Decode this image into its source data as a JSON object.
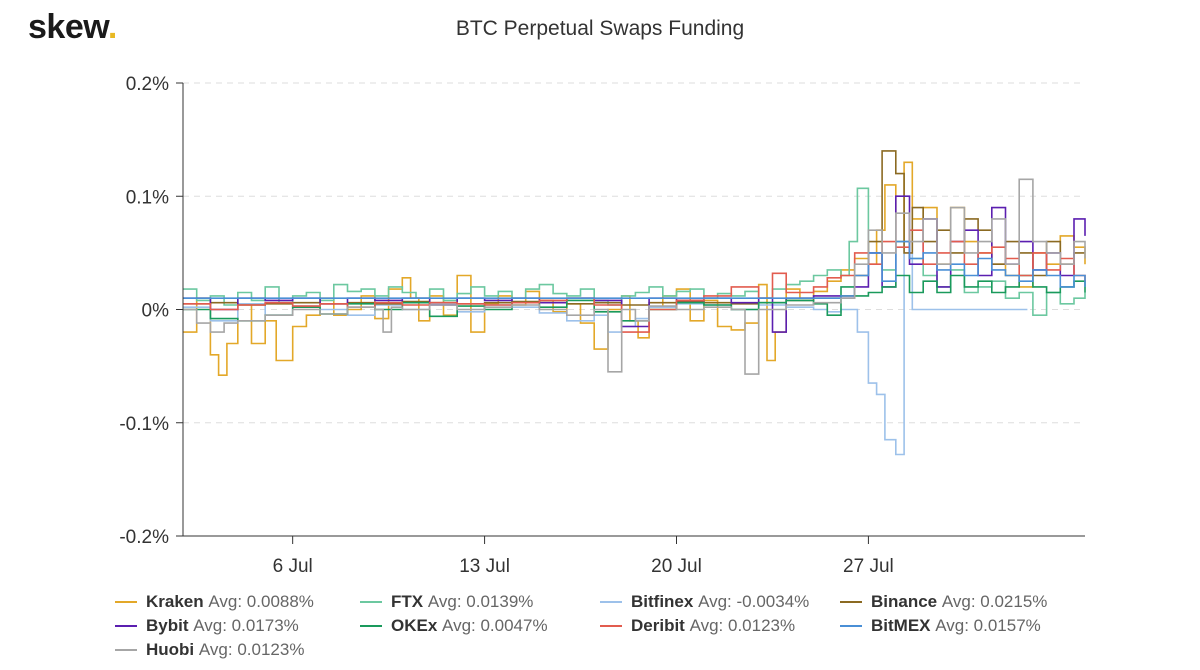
{
  "brand": {
    "name": "skew",
    "dot": "."
  },
  "chart_data": {
    "type": "line",
    "title": "BTC Perpetual Swaps Funding",
    "xlabel": "",
    "ylabel": "",
    "x_unit": "day of month (June 30 = 0)",
    "xlim": [
      2,
      34.9
    ],
    "ylim": [
      -0.2,
      0.2
    ],
    "y_ticks": [
      {
        "value": 0.2,
        "label": "0.2%"
      },
      {
        "value": 0.1,
        "label": "0.1%"
      },
      {
        "value": 0.0,
        "label": "0%"
      },
      {
        "value": -0.1,
        "label": "-0.1%"
      },
      {
        "value": -0.2,
        "label": "-0.2%"
      }
    ],
    "x_ticks": [
      {
        "value": 6,
        "label": "6 Jul"
      },
      {
        "value": 13,
        "label": "13 Jul"
      },
      {
        "value": 20,
        "label": "20 Jul"
      },
      {
        "value": 27,
        "label": "27 Jul"
      }
    ],
    "grid": true,
    "series": [
      {
        "name": "Kraken",
        "avg_label": "Avg: 0.0088%",
        "color": "#e3a829",
        "x": [
          2,
          2.5,
          3,
          3.3,
          3.6,
          4,
          4.5,
          5,
          5.4,
          6,
          6.5,
          7,
          7.5,
          8,
          8.5,
          9,
          9.5,
          10,
          10.3,
          10.6,
          11,
          11.5,
          12,
          12.5,
          13,
          13.5,
          14,
          14.5,
          15,
          15.5,
          16,
          16.5,
          17,
          17.5,
          18,
          18.3,
          18.6,
          19,
          19.5,
          20,
          20.5,
          21,
          21.5,
          22,
          22.5,
          23,
          23.3,
          23.6,
          24,
          24.5,
          25,
          25.5,
          26,
          26.5,
          27,
          27.3,
          27.6,
          28,
          28.3,
          28.6,
          29,
          29.5,
          30,
          30.5,
          31,
          31.5,
          32,
          32.5,
          33,
          33.5,
          34,
          34.5,
          34.9
        ],
        "y": [
          -0.02,
          0.01,
          -0.04,
          -0.058,
          -0.03,
          0.005,
          -0.03,
          -0.01,
          -0.045,
          -0.015,
          -0.005,
          0.01,
          -0.005,
          0.0,
          0.012,
          -0.008,
          0.018,
          0.028,
          0.01,
          -0.01,
          0.012,
          -0.005,
          0.03,
          -0.02,
          0.005,
          0.012,
          0.004,
          0.016,
          0.008,
          -0.002,
          0.005,
          -0.012,
          -0.035,
          0.0,
          0.012,
          -0.01,
          -0.025,
          0.002,
          0.012,
          0.018,
          -0.01,
          0.008,
          -0.015,
          -0.018,
          -0.012,
          0.022,
          -0.045,
          -0.02,
          0.018,
          0.01,
          0.016,
          0.025,
          0.035,
          0.045,
          0.04,
          0.07,
          0.11,
          0.06,
          0.13,
          0.08,
          0.09,
          0.04,
          0.09,
          0.06,
          0.05,
          0.04,
          0.03,
          0.02,
          0.05,
          0.04,
          0.065,
          0.055,
          0.04
        ]
      },
      {
        "name": "FTX",
        "avg_label": "Avg: 0.0139%",
        "color": "#6cc8a0",
        "x": [
          2,
          2.5,
          3,
          3.5,
          4,
          4.5,
          5,
          5.5,
          6,
          6.5,
          7,
          7.5,
          8,
          8.5,
          9,
          9.5,
          10,
          10.5,
          11,
          11.5,
          12,
          12.5,
          13,
          13.5,
          14,
          14.5,
          15,
          15.5,
          16,
          16.5,
          17,
          17.5,
          18,
          18.5,
          19,
          19.5,
          20,
          20.5,
          21,
          21.5,
          22,
          22.5,
          23,
          23.5,
          24,
          24.5,
          25,
          25.5,
          26,
          26.3,
          26.6,
          27,
          27.5,
          28,
          28.5,
          29,
          29.5,
          30,
          30.5,
          31,
          31.5,
          32,
          32.5,
          33,
          33.5,
          34,
          34.5,
          34.9
        ],
        "y": [
          0.018,
          0.008,
          0.012,
          0.004,
          0.015,
          0.008,
          0.02,
          0.006,
          0.012,
          0.015,
          0.008,
          0.022,
          0.016,
          0.018,
          0.012,
          0.02,
          0.015,
          0.01,
          0.018,
          0.008,
          0.014,
          0.02,
          0.012,
          0.016,
          0.01,
          0.018,
          0.022,
          0.014,
          0.012,
          0.018,
          0.008,
          0.004,
          0.012,
          0.015,
          0.02,
          0.012,
          0.016,
          0.018,
          0.01,
          0.014,
          0.012,
          0.016,
          0.01,
          0.018,
          0.022,
          0.025,
          0.03,
          0.035,
          0.03,
          0.06,
          0.107,
          0.05,
          0.035,
          0.06,
          0.045,
          0.03,
          0.02,
          0.035,
          0.015,
          0.02,
          0.025,
          0.01,
          0.015,
          -0.005,
          0.015,
          0.005,
          0.01,
          0.015
        ]
      },
      {
        "name": "Bitfinex",
        "avg_label": "Avg: -0.0034%",
        "color": "#9dc1ea",
        "x": [
          2,
          3,
          4,
          5,
          6,
          7,
          8,
          9,
          10,
          11,
          12,
          13,
          14,
          15,
          16,
          17,
          17.5,
          18,
          18.5,
          19,
          20,
          21,
          22,
          23,
          24,
          25,
          25.5,
          26,
          26.3,
          26.6,
          27,
          27.3,
          27.6,
          28,
          28.3,
          28.6,
          29,
          29.5,
          30,
          30.5,
          31,
          31.5,
          32,
          32.5,
          32.8
        ],
        "y": [
          0.002,
          -0.01,
          0.005,
          -0.005,
          0.003,
          0.0,
          -0.005,
          0.004,
          0.0,
          0.005,
          -0.002,
          0.004,
          0.002,
          -0.003,
          -0.01,
          -0.005,
          -0.02,
          -0.015,
          -0.008,
          0.002,
          0.005,
          0.004,
          0.0,
          0.004,
          0.002,
          0.0,
          -0.002,
          0.0,
          0.0,
          -0.02,
          -0.065,
          -0.075,
          -0.115,
          -0.128,
          0.06,
          0.0,
          0.0,
          0.0,
          0.0,
          0.0,
          0.0,
          0.0,
          0.0,
          0.0,
          0.0
        ]
      },
      {
        "name": "Binance",
        "avg_label": "Avg: 0.0215%",
        "color": "#8b6a22",
        "x": [
          2,
          3,
          4,
          5,
          6,
          7,
          8,
          9,
          10,
          11,
          12,
          13,
          14,
          15,
          16,
          17,
          18,
          19,
          20,
          21,
          22,
          23,
          24,
          25,
          26,
          26.5,
          27,
          27.5,
          28,
          28.3,
          28.6,
          29,
          29.5,
          30,
          30.5,
          31,
          31.5,
          32,
          32.5,
          33,
          33.5,
          34,
          34.5,
          34.9
        ],
        "y": [
          0.005,
          0.006,
          0.004,
          0.005,
          0.006,
          0.005,
          0.006,
          0.005,
          0.007,
          0.006,
          0.005,
          0.006,
          0.007,
          0.006,
          0.005,
          0.006,
          0.004,
          0.006,
          0.007,
          0.006,
          0.005,
          0.006,
          0.008,
          0.01,
          0.012,
          0.03,
          0.06,
          0.14,
          0.12,
          0.05,
          0.09,
          0.06,
          0.07,
          0.05,
          0.08,
          0.07,
          0.04,
          0.06,
          0.05,
          0.03,
          0.06,
          0.04,
          0.05,
          0.05
        ]
      },
      {
        "name": "Bybit",
        "avg_label": "Avg: 0.0173%",
        "color": "#5b1fb0",
        "x": [
          2,
          3,
          4,
          5,
          6,
          7,
          8,
          9,
          10,
          11,
          12,
          13,
          14,
          15,
          16,
          17,
          18,
          19,
          20,
          21,
          22,
          23,
          23.5,
          24,
          25,
          26,
          26.5,
          27,
          27.5,
          28,
          28.5,
          29,
          29.5,
          30,
          30.5,
          31,
          31.5,
          32,
          32.5,
          33,
          33.5,
          34,
          34.5,
          34.9
        ],
        "y": [
          0.01,
          0.0,
          0.01,
          0.008,
          0.01,
          0.005,
          0.01,
          0.008,
          0.01,
          0.004,
          0.01,
          0.008,
          0.01,
          0.006,
          0.01,
          0.008,
          -0.015,
          0.01,
          0.008,
          0.01,
          0.006,
          0.01,
          -0.02,
          0.01,
          0.012,
          0.01,
          0.02,
          0.05,
          0.02,
          0.1,
          0.04,
          0.08,
          0.02,
          0.06,
          0.07,
          0.03,
          0.09,
          0.04,
          0.06,
          0.035,
          0.05,
          0.03,
          0.08,
          0.065
        ]
      },
      {
        "name": "OKEx",
        "avg_label": "Avg: 0.0047%",
        "color": "#1a9a5c",
        "x": [
          2,
          3,
          4,
          5,
          6,
          7,
          8,
          9,
          10,
          11,
          12,
          13,
          14,
          15,
          16,
          17,
          18,
          19,
          20,
          21,
          22,
          23,
          24,
          25,
          25.5,
          26,
          26.5,
          27,
          27.5,
          28,
          28.5,
          29,
          29.5,
          30,
          30.5,
          31,
          31.5,
          32,
          32.5,
          33,
          33.5,
          34,
          34.5,
          34.9
        ],
        "y": [
          0.0,
          -0.008,
          -0.01,
          -0.005,
          0.002,
          -0.004,
          0.005,
          0.0,
          0.006,
          -0.006,
          0.003,
          0.0,
          0.006,
          0.002,
          0.008,
          -0.002,
          -0.01,
          0.0,
          0.006,
          0.004,
          0.0,
          0.006,
          0.008,
          0.005,
          -0.005,
          0.02,
          0.012,
          0.015,
          0.02,
          0.03,
          0.015,
          0.025,
          0.015,
          0.03,
          0.02,
          0.025,
          0.015,
          0.02,
          0.03,
          0.02,
          0.015,
          0.02,
          0.025,
          0.015
        ]
      },
      {
        "name": "Deribit",
        "avg_label": "Avg: 0.0123%",
        "color": "#e25c4f",
        "x": [
          2,
          3,
          4,
          5,
          6,
          7,
          8,
          9,
          10,
          11,
          12,
          13,
          14,
          15,
          16,
          17,
          18,
          19,
          20,
          21,
          22,
          23,
          23.5,
          24,
          25,
          25.5,
          26,
          26.5,
          27,
          27.5,
          28,
          28.5,
          29,
          29.5,
          30,
          30.5,
          31,
          31.5,
          32,
          32.5,
          33,
          33.5,
          34,
          34.5,
          34.9
        ],
        "y": [
          0.005,
          0.0,
          0.004,
          0.006,
          0.003,
          0.005,
          0.002,
          0.006,
          0.004,
          0.006,
          0.005,
          0.004,
          0.006,
          0.008,
          0.01,
          0.004,
          -0.02,
          0.0,
          0.008,
          0.012,
          0.02,
          0.01,
          0.032,
          0.015,
          0.02,
          0.028,
          0.03,
          0.05,
          0.04,
          0.06,
          0.055,
          0.07,
          0.04,
          0.05,
          0.06,
          0.04,
          0.05,
          0.055,
          0.045,
          0.03,
          0.05,
          0.035,
          0.045,
          0.03,
          0.025
        ]
      },
      {
        "name": "BitMEX",
        "avg_label": "Avg: 0.0157%",
        "color": "#4a8fd6",
        "x": [
          2,
          3,
          4,
          5,
          6,
          7,
          8,
          9,
          10,
          11,
          12,
          13,
          14,
          15,
          16,
          17,
          18,
          19,
          20,
          21,
          22,
          23,
          24,
          25,
          26,
          26.5,
          27,
          27.5,
          28,
          28.5,
          29,
          29.5,
          30,
          30.5,
          31,
          31.5,
          32,
          32.5,
          33,
          33.5,
          34,
          34.5,
          34.9
        ],
        "y": [
          0.01,
          0.01,
          0.01,
          0.01,
          0.01,
          0.01,
          0.01,
          0.01,
          0.01,
          0.01,
          0.01,
          0.01,
          0.01,
          0.01,
          0.01,
          0.01,
          0.01,
          0.01,
          0.01,
          0.01,
          0.01,
          0.01,
          0.01,
          0.01,
          0.012,
          0.03,
          0.05,
          0.025,
          0.06,
          0.045,
          0.05,
          0.035,
          0.04,
          0.03,
          0.045,
          0.035,
          0.03,
          0.025,
          0.035,
          0.03,
          0.02,
          0.03,
          0.02
        ]
      },
      {
        "name": "Huobi",
        "avg_label": "Avg: 0.0123%",
        "color": "#a6a6a6",
        "x": [
          2,
          2.5,
          3,
          3.5,
          4,
          5,
          6,
          7,
          8,
          9,
          9.3,
          9.6,
          10,
          11,
          12,
          13,
          14,
          15,
          16,
          17,
          17.5,
          18,
          18.5,
          19,
          20,
          21,
          22,
          22.5,
          23,
          24,
          25,
          26,
          26.5,
          27,
          27.5,
          28,
          28.5,
          29,
          29.5,
          30,
          30.5,
          31,
          31.5,
          32,
          32.5,
          33,
          33.5,
          34,
          34.5,
          34.9
        ],
        "y": [
          0.0,
          -0.012,
          -0.02,
          -0.012,
          -0.01,
          -0.005,
          0.0,
          -0.004,
          0.002,
          0.0,
          -0.02,
          0.002,
          0.0,
          0.004,
          0.0,
          0.002,
          0.004,
          0.0,
          -0.005,
          0.0,
          -0.055,
          0.0,
          -0.01,
          0.003,
          0.0,
          0.002,
          0.0,
          -0.057,
          0.0,
          0.004,
          0.006,
          0.01,
          0.04,
          0.07,
          0.05,
          0.085,
          0.06,
          0.08,
          0.04,
          0.09,
          0.05,
          0.06,
          0.08,
          0.04,
          0.115,
          0.06,
          0.05,
          0.04,
          0.06,
          0.045
        ]
      }
    ]
  }
}
